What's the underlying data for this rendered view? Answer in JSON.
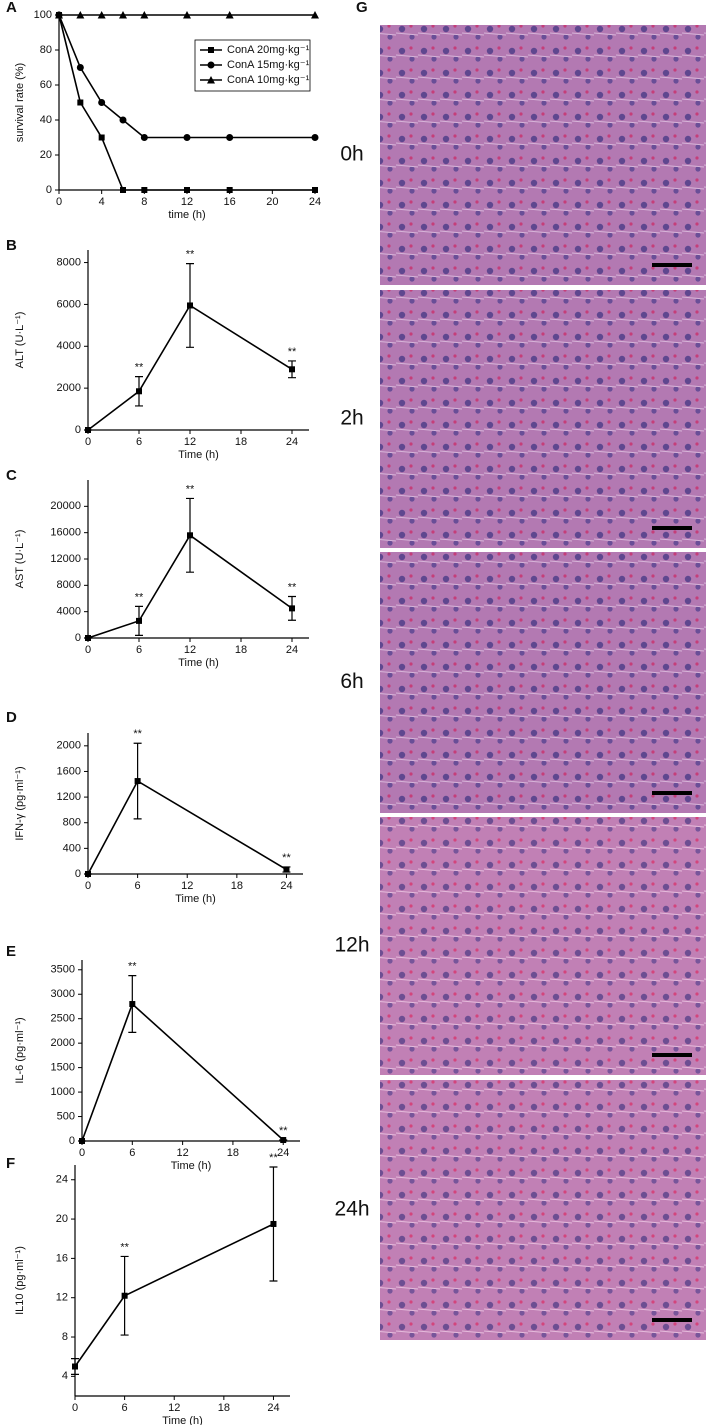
{
  "chart_data": [
    {
      "panel": "A",
      "type": "line",
      "x_label": "time (h)",
      "y_label": "survival rate (%)",
      "x": [
        0,
        2,
        4,
        6,
        8,
        12,
        16,
        24
      ],
      "series": [
        {
          "name": "ConA 20mg·kg⁻¹",
          "color": "#000000",
          "marker": "square",
          "values": [
            100,
            50,
            30,
            0,
            0,
            0,
            0,
            0
          ]
        },
        {
          "name": "ConA 15mg·kg⁻¹",
          "color": "#000000",
          "marker": "circle",
          "values": [
            100,
            70,
            50,
            40,
            30,
            30,
            30,
            30
          ]
        },
        {
          "name": "ConA 10mg·kg⁻¹",
          "color": "#000000",
          "marker": "triangle",
          "values": [
            100,
            100,
            100,
            100,
            100,
            100,
            100,
            100
          ]
        }
      ],
      "xlim": [
        0,
        24
      ],
      "xticks": [
        0,
        4,
        8,
        12,
        16,
        20,
        24
      ],
      "ylim": [
        0,
        100
      ],
      "yticks": [
        0,
        20,
        40,
        60,
        80,
        100
      ],
      "legend": "upper right"
    },
    {
      "panel": "B",
      "type": "line",
      "x_label": "Time (h)",
      "y_label": "ALT (U·L⁻¹)",
      "x": [
        0,
        6,
        12,
        24
      ],
      "values": [
        0,
        1850,
        5950,
        2900
      ],
      "errors": [
        0,
        700,
        2000,
        400
      ],
      "significance": [
        null,
        "**",
        "**",
        "**"
      ],
      "color": "#000000",
      "marker": "square",
      "xlim": [
        0,
        26
      ],
      "xticks": [
        0,
        6,
        12,
        18,
        24
      ],
      "ylim": [
        0,
        8600
      ],
      "yticks": [
        0,
        2000,
        4000,
        6000,
        8000
      ]
    },
    {
      "panel": "C",
      "type": "line",
      "x_label": "Time (h)",
      "y_label": "AST (U·L⁻¹)",
      "x": [
        0,
        6,
        12,
        24
      ],
      "values": [
        0,
        2600,
        15600,
        4500
      ],
      "errors": [
        0,
        2200,
        5600,
        1800
      ],
      "significance": [
        null,
        "**",
        "**",
        "**"
      ],
      "color": "#000000",
      "marker": "square",
      "xlim": [
        0,
        26
      ],
      "xticks": [
        0,
        6,
        12,
        18,
        24
      ],
      "ylim": [
        0,
        24000
      ],
      "yticks": [
        0,
        4000,
        8000,
        12000,
        16000,
        20000
      ]
    },
    {
      "panel": "D",
      "type": "line",
      "x_label": "Time (h)",
      "y_label": "IFN-γ (pg·ml⁻¹)",
      "x": [
        0,
        6,
        24
      ],
      "values": [
        0,
        1450,
        70
      ],
      "errors": [
        0,
        590,
        40
      ],
      "significance": [
        null,
        "**",
        "**"
      ],
      "color": "#000000",
      "marker": "square",
      "xlim": [
        0,
        26
      ],
      "xticks": [
        0,
        6,
        12,
        18,
        24
      ],
      "ylim": [
        0,
        2200
      ],
      "yticks": [
        0,
        400,
        800,
        1200,
        1600,
        2000
      ]
    },
    {
      "panel": "E",
      "type": "line",
      "x_label": "Time (h)",
      "y_label": "IL-6 (pg·ml⁻¹)",
      "x": [
        0,
        6,
        24
      ],
      "values": [
        0,
        2800,
        20
      ],
      "errors": [
        0,
        580,
        0
      ],
      "significance": [
        null,
        "**",
        "**"
      ],
      "color": "#000000",
      "marker": "square",
      "xlim": [
        0,
        26
      ],
      "xticks": [
        0,
        6,
        12,
        18,
        24
      ],
      "ylim": [
        0,
        3700
      ],
      "yticks": [
        0,
        500,
        1000,
        1500,
        2000,
        2500,
        3000,
        3500
      ]
    },
    {
      "panel": "F",
      "type": "line",
      "x_label": "Time (h)",
      "y_label": "IL10 (pg·ml⁻¹)",
      "x": [
        0,
        6,
        24
      ],
      "values": [
        5,
        12.2,
        19.5
      ],
      "errors": [
        0.8,
        4,
        5.8
      ],
      "significance": [
        null,
        "**",
        "**"
      ],
      "color": "#000000",
      "marker": "square",
      "xlim": [
        0,
        26
      ],
      "xticks": [
        0,
        6,
        12,
        18,
        24
      ],
      "ylim": [
        2,
        25.5
      ],
      "yticks": [
        4,
        8,
        12,
        16,
        20,
        24
      ]
    }
  ],
  "image_panel": {
    "panel": "G",
    "images": [
      {
        "label": "0h"
      },
      {
        "label": "2h"
      },
      {
        "label": "6h"
      },
      {
        "label": "12h"
      },
      {
        "label": "24h"
      }
    ]
  }
}
